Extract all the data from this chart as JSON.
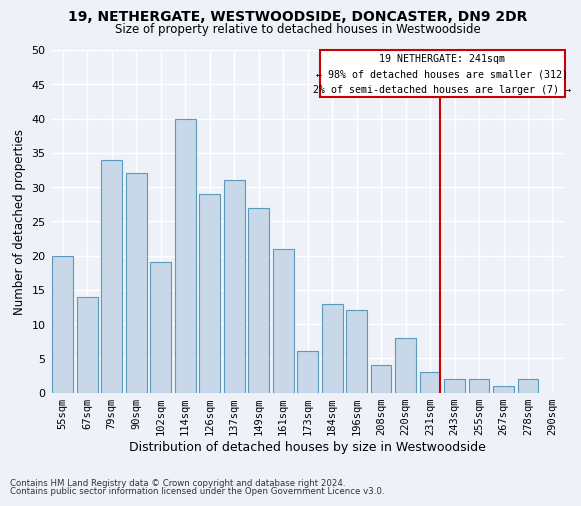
{
  "title1": "19, NETHERGATE, WESTWOODSIDE, DONCASTER, DN9 2DR",
  "title2": "Size of property relative to detached houses in Westwoodside",
  "xlabel": "Distribution of detached houses by size in Westwoodside",
  "ylabel": "Number of detached properties",
  "categories": [
    "55sqm",
    "67sqm",
    "79sqm",
    "90sqm",
    "102sqm",
    "114sqm",
    "126sqm",
    "137sqm",
    "149sqm",
    "161sqm",
    "173sqm",
    "184sqm",
    "196sqm",
    "208sqm",
    "220sqm",
    "231sqm",
    "243sqm",
    "255sqm",
    "267sqm",
    "278sqm",
    "290sqm"
  ],
  "values": [
    20,
    14,
    34,
    32,
    19,
    40,
    29,
    31,
    27,
    21,
    6,
    13,
    12,
    4,
    8,
    3,
    2,
    2,
    1,
    2,
    0
  ],
  "bar_color": "#c8d8e8",
  "bar_edge_color": "#5a9abd",
  "annotation_text_line1": "19 NETHERGATE: 241sqm",
  "annotation_text_line2": "← 98% of detached houses are smaller (312)",
  "annotation_text_line3": "2% of semi-detached houses are larger (7) →",
  "annotation_box_color": "#cc0000",
  "vline_color": "#cc0000",
  "background_color": "#eef2f8",
  "grid_color": "#ffffff",
  "footer_line1": "Contains HM Land Registry data © Crown copyright and database right 2024.",
  "footer_line2": "Contains public sector information licensed under the Open Government Licence v3.0.",
  "ylim": [
    0,
    50
  ],
  "yticks": [
    0,
    5,
    10,
    15,
    20,
    25,
    30,
    35,
    40,
    45,
    50
  ]
}
